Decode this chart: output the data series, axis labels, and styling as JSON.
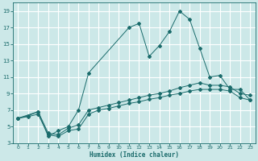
{
  "xlabel": "Humidex (Indice chaleur)",
  "xlim": [
    -0.5,
    23.5
  ],
  "ylim": [
    3,
    20
  ],
  "xticks": [
    0,
    1,
    2,
    3,
    4,
    5,
    6,
    7,
    8,
    9,
    10,
    11,
    12,
    13,
    14,
    15,
    16,
    17,
    18,
    19,
    20,
    21,
    22,
    23
  ],
  "yticks": [
    3,
    5,
    7,
    9,
    11,
    13,
    15,
    17,
    19
  ],
  "bg_color": "#cce8e8",
  "grid_color": "#ffffff",
  "line_color": "#1a6b6b",
  "line1": {
    "x": [
      0,
      1,
      2,
      3,
      4,
      5,
      6,
      7,
      8,
      9,
      10,
      11,
      12,
      13,
      14,
      15,
      16,
      17,
      18,
      19,
      20,
      21,
      22,
      23
    ],
    "y": [
      6.0,
      6.2,
      6.5,
      4.0,
      3.8,
      4.5,
      4.7,
      6.5,
      7.0,
      7.2,
      7.5,
      7.8,
      8.0,
      8.3,
      8.5,
      8.8,
      9.0,
      9.3,
      9.5,
      9.5,
      9.5,
      9.3,
      8.5,
      8.2
    ]
  },
  "line2": {
    "x": [
      0,
      1,
      2,
      3,
      4,
      5,
      6,
      7,
      8,
      9,
      10,
      11,
      12,
      13,
      14,
      15,
      16,
      17,
      18,
      19,
      20,
      21,
      22,
      23
    ],
    "y": [
      6.0,
      6.3,
      6.8,
      4.2,
      4.0,
      4.8,
      5.2,
      7.0,
      7.3,
      7.6,
      7.9,
      8.2,
      8.5,
      8.8,
      9.0,
      9.3,
      9.7,
      10.0,
      10.3,
      10.0,
      10.0,
      9.8,
      9.0,
      8.8
    ]
  },
  "line3": {
    "x": [
      0,
      2,
      3,
      4,
      5,
      6,
      7,
      11,
      12,
      13,
      14,
      15,
      16,
      17,
      18,
      19,
      20,
      21,
      22,
      23
    ],
    "y": [
      6.0,
      6.8,
      3.8,
      4.5,
      5.0,
      7.0,
      11.5,
      17.0,
      17.5,
      13.5,
      14.8,
      16.5,
      19.0,
      18.0,
      14.5,
      11.0,
      11.2,
      9.5,
      9.5,
      8.2
    ]
  }
}
